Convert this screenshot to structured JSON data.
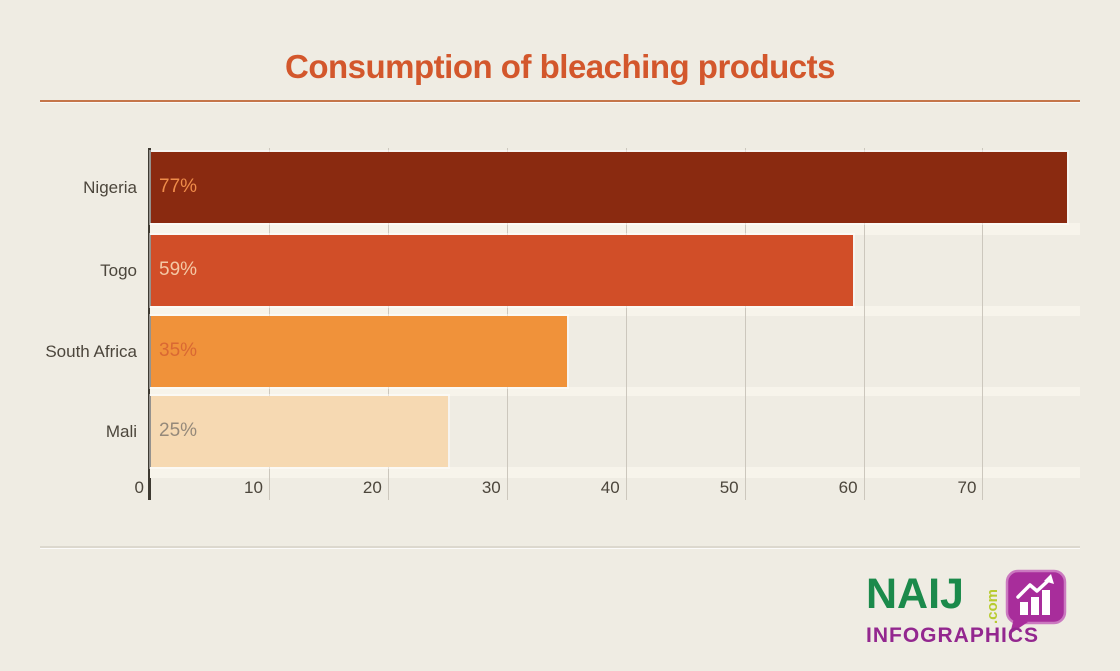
{
  "page": {
    "background_color": "#efece3",
    "title": "Consumption of bleaching products",
    "title_color": "#d3572c",
    "title_rule_color": "#c5764a"
  },
  "chart_data": {
    "type": "bar",
    "orientation": "horizontal",
    "title": "Consumption of bleaching products",
    "categories": [
      "Nigeria",
      "Togo",
      "South Africa",
      "Mali"
    ],
    "values": [
      77,
      59,
      35,
      25
    ],
    "value_labels": [
      "77%",
      "59%",
      "35%",
      "25%"
    ],
    "bar_colors": [
      "#8a2a10",
      "#d14e28",
      "#f0923a",
      "#f6d9b2"
    ],
    "value_label_colors": [
      "#ef8c4a",
      "#f4c8a5",
      "#d96833",
      "#95897a"
    ],
    "x_ticks": [
      0,
      10,
      20,
      30,
      40,
      50,
      60,
      70
    ],
    "xlim": [
      0,
      78.2
    ],
    "xlabel": "",
    "ylabel": "",
    "grid": true,
    "gridline_color": "#ccc7bd",
    "axis_line_color": "#3e3a32",
    "tick_label_color": "#4c463c",
    "legend": false
  },
  "footer": {
    "logo": {
      "brand": "NAIJ",
      "brand_suffix": ".com",
      "subtitle": "INFOGRAPHICS",
      "brand_color": "#1b8a4b",
      "suffix_color": "#b8cb2f",
      "subtitle_color": "#93278f",
      "icon": "bar-chart-speech-bubble-icon",
      "icon_color": "#a82d9b"
    }
  }
}
